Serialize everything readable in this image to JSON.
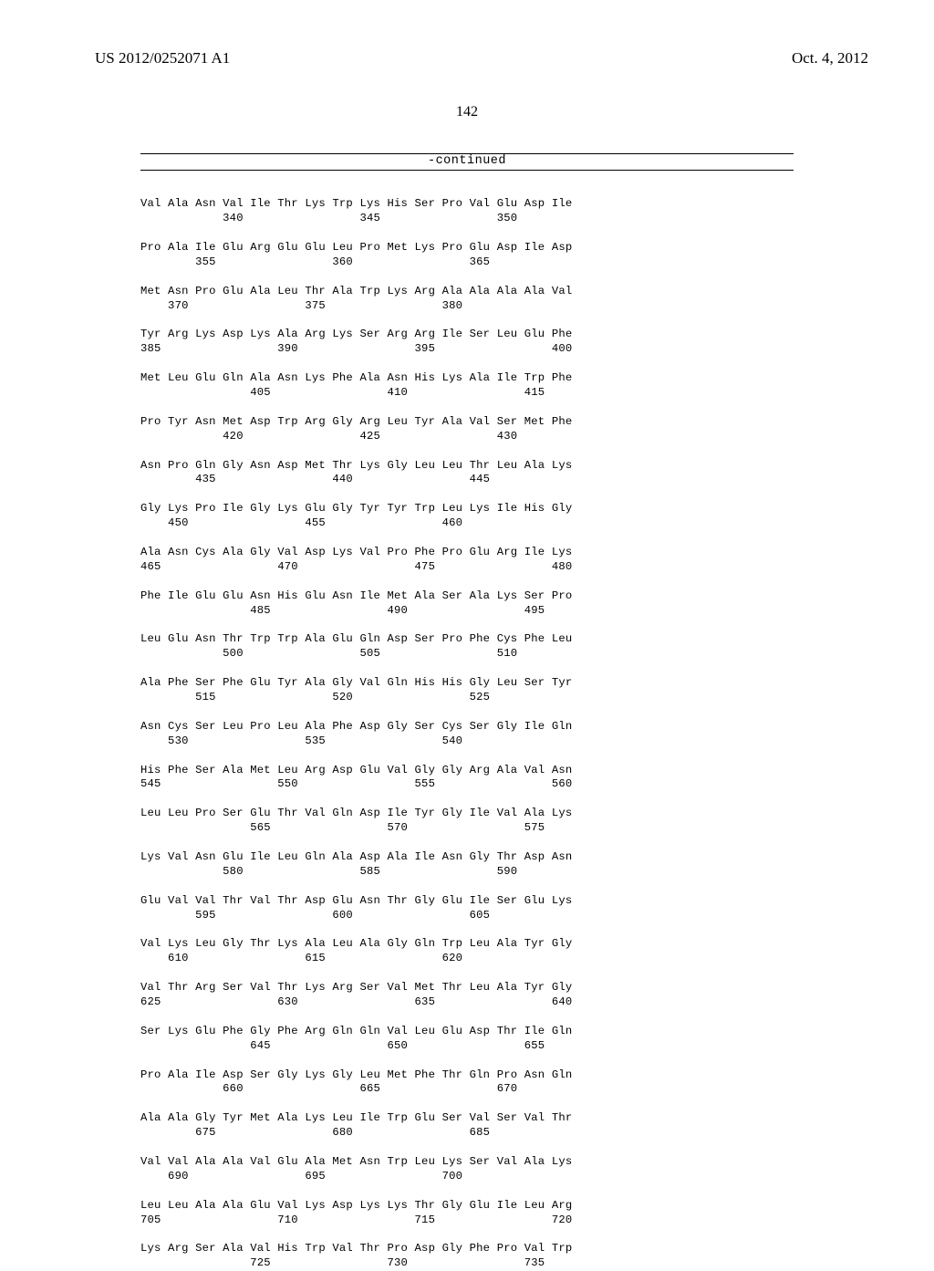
{
  "header": {
    "pub_number": "US 2012/0252071 A1",
    "pub_date": "Oct. 4, 2012"
  },
  "page_number": "142",
  "continued_label": "-continued",
  "sequence_blocks": [
    {
      "aa": "Val Ala Asn Val Ile Thr Lys Trp Lys His Ser Pro Val Glu Asp Ile",
      "nums": "            340                 345                 350"
    },
    {
      "aa": "Pro Ala Ile Glu Arg Glu Glu Leu Pro Met Lys Pro Glu Asp Ile Asp",
      "nums": "        355                 360                 365"
    },
    {
      "aa": "Met Asn Pro Glu Ala Leu Thr Ala Trp Lys Arg Ala Ala Ala Ala Val",
      "nums": "    370                 375                 380"
    },
    {
      "aa": "Tyr Arg Lys Asp Lys Ala Arg Lys Ser Arg Arg Ile Ser Leu Glu Phe",
      "nums": "385                 390                 395                 400"
    },
    {
      "aa": "Met Leu Glu Gln Ala Asn Lys Phe Ala Asn His Lys Ala Ile Trp Phe",
      "nums": "                405                 410                 415"
    },
    {
      "aa": "Pro Tyr Asn Met Asp Trp Arg Gly Arg Leu Tyr Ala Val Ser Met Phe",
      "nums": "            420                 425                 430"
    },
    {
      "aa": "Asn Pro Gln Gly Asn Asp Met Thr Lys Gly Leu Leu Thr Leu Ala Lys",
      "nums": "        435                 440                 445"
    },
    {
      "aa": "Gly Lys Pro Ile Gly Lys Glu Gly Tyr Tyr Trp Leu Lys Ile His Gly",
      "nums": "    450                 455                 460"
    },
    {
      "aa": "Ala Asn Cys Ala Gly Val Asp Lys Val Pro Phe Pro Glu Arg Ile Lys",
      "nums": "465                 470                 475                 480"
    },
    {
      "aa": "Phe Ile Glu Glu Asn His Glu Asn Ile Met Ala Ser Ala Lys Ser Pro",
      "nums": "                485                 490                 495"
    },
    {
      "aa": "Leu Glu Asn Thr Trp Trp Ala Glu Gln Asp Ser Pro Phe Cys Phe Leu",
      "nums": "            500                 505                 510"
    },
    {
      "aa": "Ala Phe Ser Phe Glu Tyr Ala Gly Val Gln His His Gly Leu Ser Tyr",
      "nums": "        515                 520                 525"
    },
    {
      "aa": "Asn Cys Ser Leu Pro Leu Ala Phe Asp Gly Ser Cys Ser Gly Ile Gln",
      "nums": "    530                 535                 540"
    },
    {
      "aa": "His Phe Ser Ala Met Leu Arg Asp Glu Val Gly Gly Arg Ala Val Asn",
      "nums": "545                 550                 555                 560"
    },
    {
      "aa": "Leu Leu Pro Ser Glu Thr Val Gln Asp Ile Tyr Gly Ile Val Ala Lys",
      "nums": "                565                 570                 575"
    },
    {
      "aa": "Lys Val Asn Glu Ile Leu Gln Ala Asp Ala Ile Asn Gly Thr Asp Asn",
      "nums": "            580                 585                 590"
    },
    {
      "aa": "Glu Val Val Thr Val Thr Asp Glu Asn Thr Gly Glu Ile Ser Glu Lys",
      "nums": "        595                 600                 605"
    },
    {
      "aa": "Val Lys Leu Gly Thr Lys Ala Leu Ala Gly Gln Trp Leu Ala Tyr Gly",
      "nums": "    610                 615                 620"
    },
    {
      "aa": "Val Thr Arg Ser Val Thr Lys Arg Ser Val Met Thr Leu Ala Tyr Gly",
      "nums": "625                 630                 635                 640"
    },
    {
      "aa": "Ser Lys Glu Phe Gly Phe Arg Gln Gln Val Leu Glu Asp Thr Ile Gln",
      "nums": "                645                 650                 655"
    },
    {
      "aa": "Pro Ala Ile Asp Ser Gly Lys Gly Leu Met Phe Thr Gln Pro Asn Gln",
      "nums": "            660                 665                 670"
    },
    {
      "aa": "Ala Ala Gly Tyr Met Ala Lys Leu Ile Trp Glu Ser Val Ser Val Thr",
      "nums": "        675                 680                 685"
    },
    {
      "aa": "Val Val Ala Ala Val Glu Ala Met Asn Trp Leu Lys Ser Val Ala Lys",
      "nums": "    690                 695                 700"
    },
    {
      "aa": "Leu Leu Ala Ala Glu Val Lys Asp Lys Lys Thr Gly Glu Ile Leu Arg",
      "nums": "705                 710                 715                 720"
    },
    {
      "aa": "Lys Arg Ser Ala Val His Trp Val Thr Pro Asp Gly Phe Pro Val Trp",
      "nums": "                725                 730                 735"
    }
  ]
}
